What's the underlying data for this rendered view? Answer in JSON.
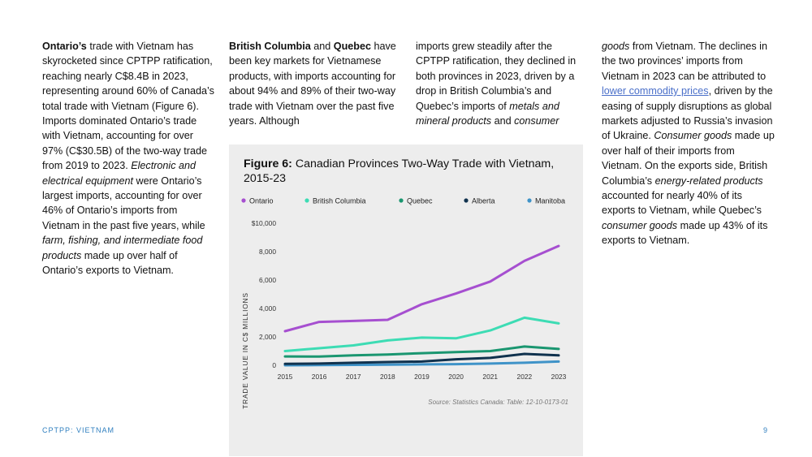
{
  "col1": {
    "bold": "Ontario’s",
    "text1": " trade with Vietnam has skyrocketed since CPTPP ratification, reaching nearly C$8.4B in 2023, representing around 60% of Canada’s total trade with Vietnam (Figure 6). Imports dominated Ontario’s trade with Vietnam, accounting for over 97% (C$30.5B) of the two-way trade from 2019 to 2023. ",
    "ital1": "Electronic and electrical equipment",
    "text2": " were Ontario’s largest imports, accounting for over 46% of Ontario’s imports from Vietnam in the past five years, while ",
    "ital2": "farm, fishing, and intermediate food products",
    "text3": " made up over half of Ontario’s exports to Vietnam."
  },
  "col2": {
    "bold1": "British Columbia",
    "and": " and ",
    "bold2": "Quebec",
    "text1": " have been key markets for Vietnamese products, with imports accounting for about 94% and 89% of their two-way trade with Vietnam over the past five years. Although"
  },
  "col3": {
    "text1": "imports grew steadily after the CPTPP ratification, they declined in both provinces in 2023, driven by a drop in British Columbia’s and Quebec’s imports of ",
    "ital1": "metals and mineral products",
    "text2": " and ",
    "ital2": "consumer"
  },
  "col4": {
    "ital1": "goods",
    "text1": " from Vietnam. The declines in the two provinces’ imports from Vietnam in 2023 can be attributed to ",
    "link": "lower commodity prices",
    "text2": ", driven by the easing of supply disruptions as global markets adjusted to Russia’s invasion of Ukraine. ",
    "ital2": "Consumer goods",
    "text3": " made up over half of their imports from Vietnam. On the exports side, British Columbia’s ",
    "ital3": "energy-related products",
    "text4": " accounted for nearly 40% of its exports to Vietnam, while Quebec’s ",
    "ital4": "consumer goods",
    "text5": " made up 43% of its exports to Vietnam."
  },
  "chart_title": {
    "prefix": "Figure 6:",
    "text": " Canadian Provinces Two-Way Trade with Vietnam, 2015-23"
  },
  "chart_data": {
    "type": "line",
    "x": [
      "2015",
      "2016",
      "2017",
      "2018",
      "2019",
      "2020",
      "2021",
      "2022",
      "2023"
    ],
    "ylabel": "TRADE VALUE IN C$ MILLIONS",
    "ylim": [
      0,
      10000
    ],
    "yticks": [
      "0",
      "2,000",
      "4,000",
      "6,000",
      "8,000",
      "$10,000"
    ],
    "grid": false,
    "legend_position": "top",
    "series": [
      {
        "name": "Ontario",
        "color": "#a64fd0",
        "values": [
          2400,
          3050,
          3120,
          3200,
          4300,
          5050,
          5900,
          7350,
          8400
        ]
      },
      {
        "name": "British Columbia",
        "color": "#3ddcb4",
        "values": [
          1000,
          1200,
          1400,
          1750,
          1950,
          1900,
          2450,
          3350,
          2950
        ]
      },
      {
        "name": "Quebec",
        "color": "#1a9670",
        "values": [
          620,
          610,
          700,
          760,
          850,
          930,
          1000,
          1320,
          1150
        ]
      },
      {
        "name": "Alberta",
        "color": "#10324e",
        "values": [
          100,
          120,
          180,
          230,
          260,
          420,
          520,
          800,
          700
        ]
      },
      {
        "name": "Manitoba",
        "color": "#3f93c8",
        "values": [
          0,
          10,
          30,
          40,
          60,
          80,
          120,
          180,
          260
        ]
      }
    ]
  },
  "source": "Source: Statistics Canada: Table: 12-10-0173-01",
  "footer": {
    "left": "CPTPP: VIETNAM",
    "page": "9"
  }
}
